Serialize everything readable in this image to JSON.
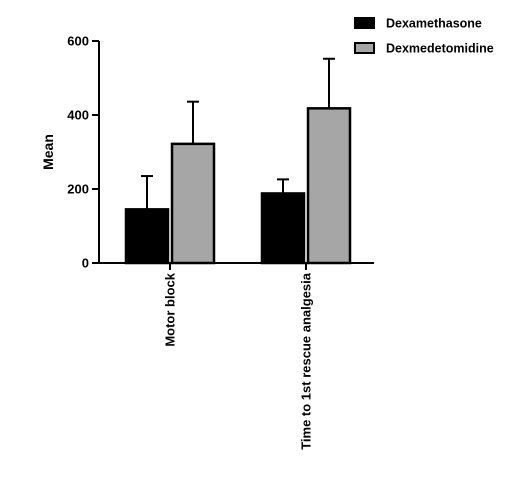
{
  "chart_data": {
    "type": "bar",
    "title": "",
    "xlabel": "",
    "ylabel": "Mean",
    "ylim": [
      0,
      600
    ],
    "yticks": [
      0,
      200,
      400,
      600
    ],
    "grid": false,
    "legend_position": "top-right",
    "categories": [
      "Motor block",
      "Time to 1st rescue analgesia"
    ],
    "series": [
      {
        "name": "Dexamethasone",
        "color": "#000000",
        "values": [
          145,
          188
        ],
        "error": [
          90,
          38
        ]
      },
      {
        "name": "Dexmedetomidine",
        "color": "#a6a6a6",
        "values": [
          322,
          418
        ],
        "error": [
          114,
          134
        ]
      }
    ]
  }
}
